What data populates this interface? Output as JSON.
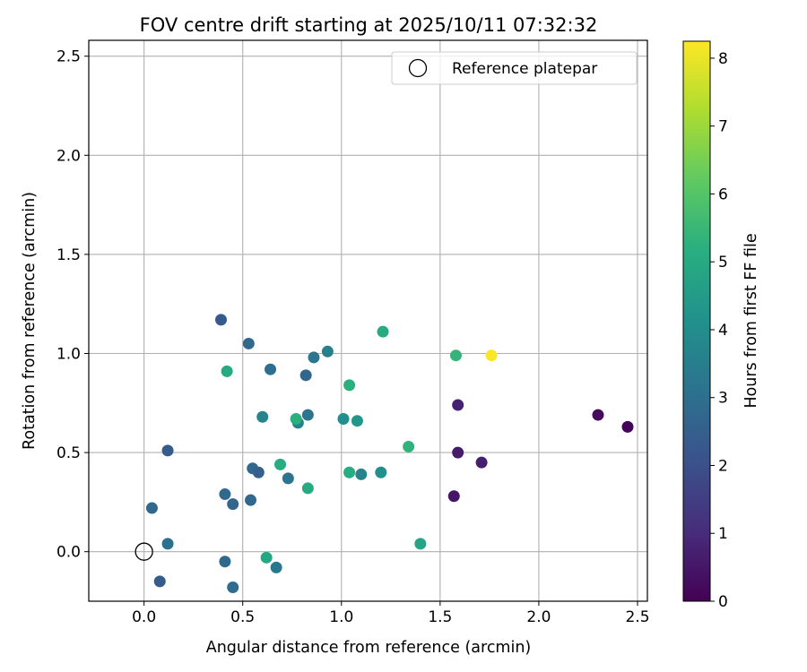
{
  "chart_data": {
    "type": "scatter",
    "title": "FOV centre drift starting at 2025/10/11 07:32:32",
    "xlabel": "Angular distance from reference (arcmin)",
    "ylabel": "Rotation from reference (arcmin)",
    "xlim": [
      -0.28,
      2.55
    ],
    "ylim": [
      -0.25,
      2.58
    ],
    "xticks": [
      0.0,
      0.5,
      1.0,
      1.5,
      2.0,
      2.5
    ],
    "xtick_labels": [
      "0.0",
      "0.5",
      "1.0",
      "1.5",
      "2.0",
      "2.5"
    ],
    "yticks": [
      0.0,
      0.5,
      1.0,
      1.5,
      2.0,
      2.5
    ],
    "ytick_labels": [
      "0.0",
      "0.5",
      "1.0",
      "1.5",
      "2.0",
      "2.5"
    ],
    "grid": true,
    "legend": {
      "position": "top-right",
      "entries": [
        "Reference platepar"
      ]
    },
    "reference_point": {
      "x": 0.0,
      "y": 0.0,
      "label": "Reference platepar"
    },
    "colorbar": {
      "label": "Hours from first FF file",
      "range": [
        0,
        8.25
      ],
      "ticks": [
        0,
        1,
        2,
        3,
        4,
        5,
        6,
        7,
        8
      ],
      "tick_labels": [
        "0",
        "1",
        "2",
        "3",
        "4",
        "5",
        "6",
        "7",
        "8"
      ],
      "colormap": "viridis"
    },
    "points": [
      {
        "x": 2.45,
        "y": 0.63,
        "c": 0.1
      },
      {
        "x": 2.3,
        "y": 0.69,
        "c": 0.2
      },
      {
        "x": 1.71,
        "y": 0.45,
        "c": 0.7
      },
      {
        "x": 1.59,
        "y": 0.74,
        "c": 0.8
      },
      {
        "x": 1.59,
        "y": 0.5,
        "c": 0.6
      },
      {
        "x": 1.57,
        "y": 0.28,
        "c": 0.5
      },
      {
        "x": 0.39,
        "y": 1.17,
        "c": 2.3
      },
      {
        "x": 0.53,
        "y": 1.05,
        "c": 2.8
      },
      {
        "x": 0.12,
        "y": 0.51,
        "c": 2.4
      },
      {
        "x": 0.04,
        "y": 0.22,
        "c": 2.8
      },
      {
        "x": 0.12,
        "y": 0.04,
        "c": 3.0
      },
      {
        "x": 0.08,
        "y": -0.15,
        "c": 2.4
      },
      {
        "x": 0.41,
        "y": 0.29,
        "c": 2.8
      },
      {
        "x": 0.45,
        "y": 0.24,
        "c": 2.7
      },
      {
        "x": 0.41,
        "y": -0.05,
        "c": 2.8
      },
      {
        "x": 0.45,
        "y": -0.18,
        "c": 2.9
      },
      {
        "x": 0.55,
        "y": 0.42,
        "c": 2.8
      },
      {
        "x": 0.58,
        "y": 0.4,
        "c": 2.5
      },
      {
        "x": 0.54,
        "y": 0.26,
        "c": 2.8
      },
      {
        "x": 0.64,
        "y": 0.92,
        "c": 3.0
      },
      {
        "x": 0.6,
        "y": 0.68,
        "c": 3.7
      },
      {
        "x": 0.82,
        "y": 0.89,
        "c": 2.7
      },
      {
        "x": 0.86,
        "y": 0.98,
        "c": 3.2
      },
      {
        "x": 0.93,
        "y": 1.01,
        "c": 3.6
      },
      {
        "x": 0.83,
        "y": 0.69,
        "c": 3.2
      },
      {
        "x": 0.78,
        "y": 0.65,
        "c": 3.6
      },
      {
        "x": 0.73,
        "y": 0.37,
        "c": 3.2
      },
      {
        "x": 0.67,
        "y": -0.08,
        "c": 3.3
      },
      {
        "x": 1.01,
        "y": 0.67,
        "c": 4.1
      },
      {
        "x": 1.08,
        "y": 0.66,
        "c": 4.3
      },
      {
        "x": 1.1,
        "y": 0.39,
        "c": 3.7
      },
      {
        "x": 1.2,
        "y": 0.4,
        "c": 4.1
      },
      {
        "x": 0.42,
        "y": 0.91,
        "c": 5.0
      },
      {
        "x": 0.69,
        "y": 0.44,
        "c": 5.1
      },
      {
        "x": 0.77,
        "y": 0.67,
        "c": 5.2
      },
      {
        "x": 0.83,
        "y": 0.32,
        "c": 5.0
      },
      {
        "x": 0.62,
        "y": -0.03,
        "c": 4.9
      },
      {
        "x": 1.04,
        "y": 0.84,
        "c": 5.2
      },
      {
        "x": 1.04,
        "y": 0.4,
        "c": 5.1
      },
      {
        "x": 1.21,
        "y": 1.11,
        "c": 5.0
      },
      {
        "x": 1.34,
        "y": 0.53,
        "c": 5.3
      },
      {
        "x": 1.4,
        "y": 0.04,
        "c": 4.8
      },
      {
        "x": 1.58,
        "y": 0.99,
        "c": 5.4
      },
      {
        "x": 1.76,
        "y": 0.99,
        "c": 8.2
      }
    ]
  }
}
